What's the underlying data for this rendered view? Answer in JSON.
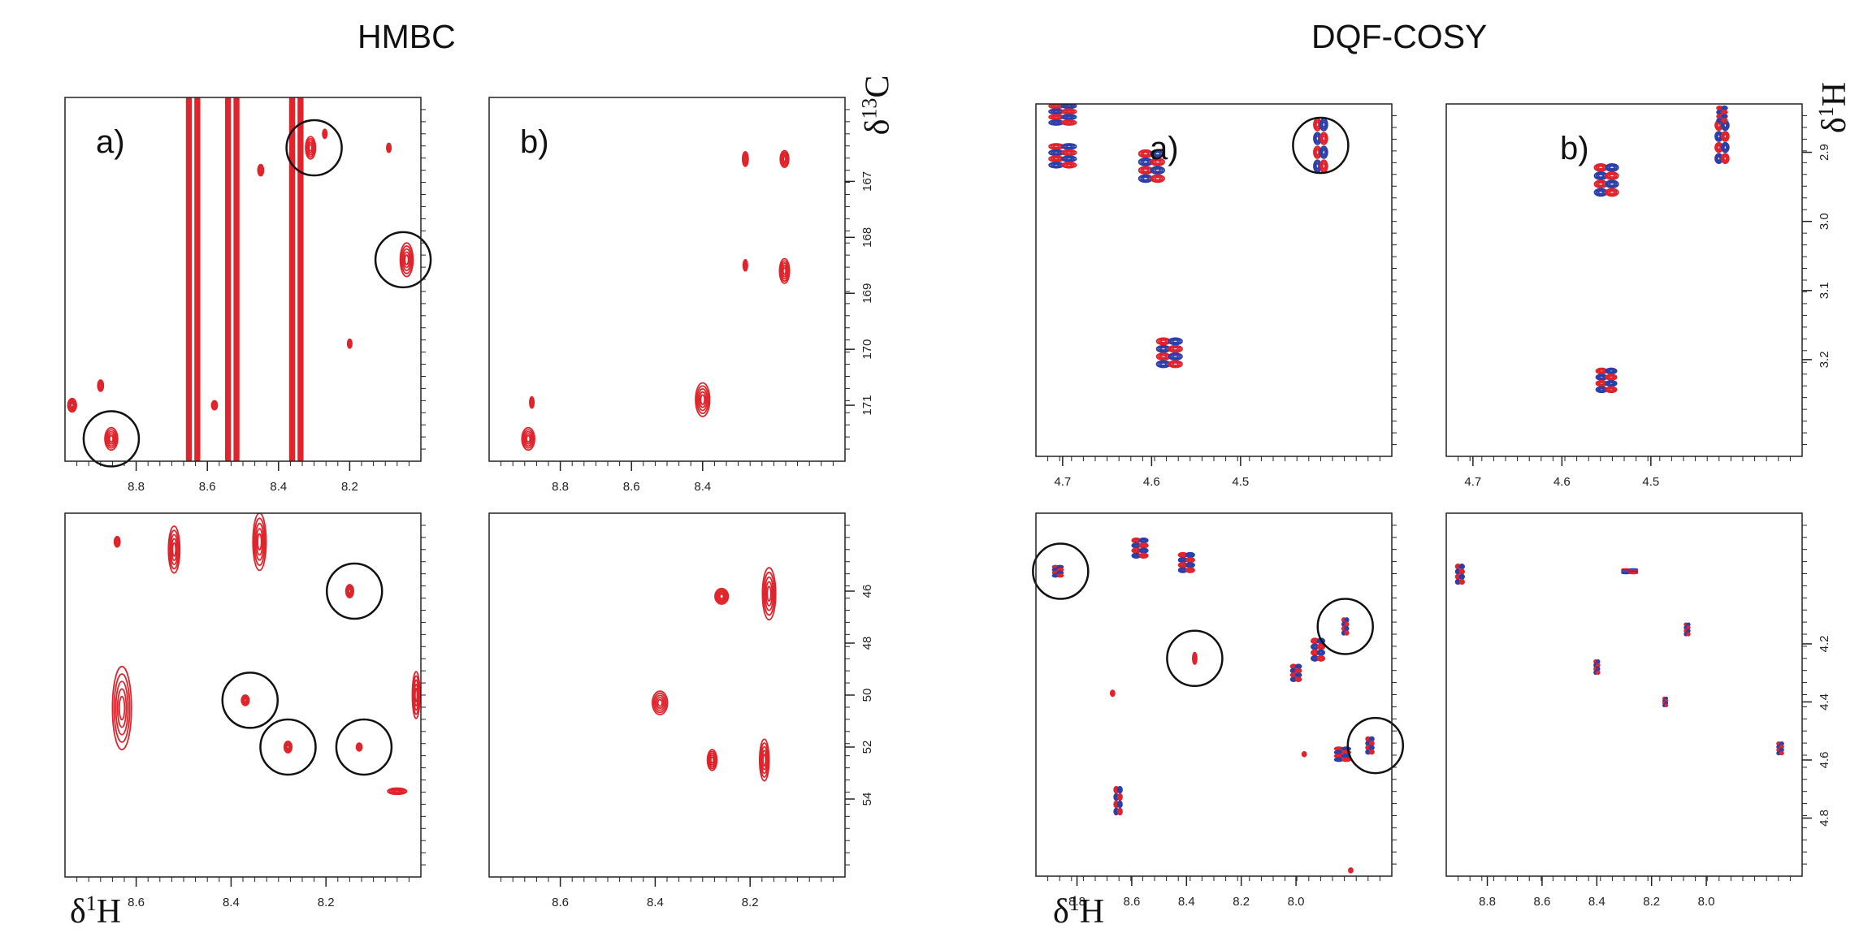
{
  "colors": {
    "positive": "#e0242c",
    "negative": "#2d3fa8",
    "circle": "#111111",
    "axis": "#222222"
  },
  "titles": {
    "hmbc": "HMBC",
    "cosy": "DQF-COSY"
  },
  "axis_titles": {
    "hmbc_bottom_x": "δ¹H",
    "cosy_bottom_x": "δ¹H",
    "hmbc_right_y": "δ¹³C",
    "cosy_right_y": "δ¹H"
  },
  "chart_data": [
    {
      "type": "heatmap",
      "group": "HMBC",
      "panel_label": "a)",
      "xlim": [
        9.0,
        8.0
      ],
      "ylim": [
        165.5,
        172.0
      ],
      "x_ticks": [
        "8.8",
        "8.6",
        "8.4",
        "8.2"
      ],
      "y_ticks": [],
      "peaks": [
        {
          "x": 8.87,
          "y": 171.6,
          "sx": 0.018,
          "sy": 0.2,
          "c": "r"
        },
        {
          "x": 8.98,
          "y": 171.0,
          "sx": 0.012,
          "sy": 0.12,
          "c": "r"
        },
        {
          "x": 8.9,
          "y": 170.65,
          "sx": 0.008,
          "sy": 0.1,
          "c": "r"
        },
        {
          "x": 8.31,
          "y": 166.4,
          "sx": 0.014,
          "sy": 0.2,
          "c": "r"
        },
        {
          "x": 8.27,
          "y": 166.15,
          "sx": 0.006,
          "sy": 0.08,
          "c": "r"
        },
        {
          "x": 8.04,
          "y": 168.4,
          "sx": 0.018,
          "sy": 0.3,
          "c": "r"
        },
        {
          "x": 8.09,
          "y": 166.4,
          "sx": 0.006,
          "sy": 0.08,
          "c": "r"
        },
        {
          "x": 8.45,
          "y": 166.8,
          "sx": 0.008,
          "sy": 0.1,
          "c": "r"
        },
        {
          "x": 8.58,
          "y": 171.0,
          "sx": 0.008,
          "sy": 0.08,
          "c": "r"
        },
        {
          "x": 8.2,
          "y": 169.9,
          "sx": 0.006,
          "sy": 0.08,
          "c": "r"
        }
      ],
      "ridges": [
        {
          "x": 8.64,
          "sx": 0.018,
          "c": "r"
        },
        {
          "x": 8.53,
          "sx": 0.018,
          "c": "r"
        },
        {
          "x": 8.35,
          "sx": 0.018,
          "c": "r"
        }
      ],
      "circles": [
        {
          "x": 8.3,
          "y": 166.4
        },
        {
          "x": 8.05,
          "y": 168.4
        },
        {
          "x": 8.87,
          "y": 171.6
        }
      ]
    },
    {
      "type": "heatmap",
      "group": "HMBC",
      "panel_label": "b)",
      "xlim": [
        9.0,
        8.0
      ],
      "ylim": [
        165.5,
        172.0
      ],
      "x_ticks": [
        "8.8",
        "8.6",
        "8.4"
      ],
      "y_ticks": [
        "167",
        "168",
        "169",
        "170",
        "171"
      ],
      "peaks": [
        {
          "x": 8.89,
          "y": 171.6,
          "sx": 0.018,
          "sy": 0.2,
          "c": "r"
        },
        {
          "x": 8.88,
          "y": 170.95,
          "sx": 0.006,
          "sy": 0.1,
          "c": "r"
        },
        {
          "x": 8.4,
          "y": 170.9,
          "sx": 0.02,
          "sy": 0.3,
          "c": "r"
        },
        {
          "x": 8.28,
          "y": 166.6,
          "sx": 0.008,
          "sy": 0.13,
          "c": "r"
        },
        {
          "x": 8.17,
          "y": 166.6,
          "sx": 0.012,
          "sy": 0.15,
          "c": "r"
        },
        {
          "x": 8.28,
          "y": 168.5,
          "sx": 0.006,
          "sy": 0.1,
          "c": "r"
        },
        {
          "x": 8.17,
          "y": 168.6,
          "sx": 0.014,
          "sy": 0.22,
          "c": "r"
        }
      ],
      "ridges": [],
      "circles": []
    },
    {
      "type": "heatmap",
      "group": "HMBC",
      "panel_label": "",
      "xlim": [
        8.75,
        8.0
      ],
      "ylim": [
        43.0,
        57.0
      ],
      "x_ticks": [
        "8.6",
        "8.4",
        "8.2"
      ],
      "y_ticks": [],
      "peaks": [
        {
          "x": 8.63,
          "y": 50.5,
          "sx": 0.02,
          "sy": 1.6,
          "c": "r"
        },
        {
          "x": 8.52,
          "y": 44.4,
          "sx": 0.012,
          "sy": 0.9,
          "c": "r"
        },
        {
          "x": 8.34,
          "y": 44.1,
          "sx": 0.014,
          "sy": 1.1,
          "c": "r"
        },
        {
          "x": 8.15,
          "y": 46.0,
          "sx": 0.008,
          "sy": 0.25,
          "c": "r"
        },
        {
          "x": 8.37,
          "y": 50.2,
          "sx": 0.008,
          "sy": 0.2,
          "c": "r"
        },
        {
          "x": 8.28,
          "y": 52.0,
          "sx": 0.008,
          "sy": 0.22,
          "c": "r"
        },
        {
          "x": 8.13,
          "y": 52.0,
          "sx": 0.006,
          "sy": 0.15,
          "c": "r"
        },
        {
          "x": 8.01,
          "y": 50.0,
          "sx": 0.008,
          "sy": 0.9,
          "c": "r"
        },
        {
          "x": 8.64,
          "y": 44.1,
          "sx": 0.006,
          "sy": 0.2,
          "c": "r"
        },
        {
          "x": 8.05,
          "y": 53.7,
          "sx": 0.02,
          "sy": 0.12,
          "c": "r"
        }
      ],
      "ridges": [],
      "circles": [
        {
          "x": 8.14,
          "y": 46.0
        },
        {
          "x": 8.36,
          "y": 50.2
        },
        {
          "x": 8.28,
          "y": 52.0
        },
        {
          "x": 8.12,
          "y": 52.0
        }
      ]
    },
    {
      "type": "heatmap",
      "group": "HMBC",
      "panel_label": "",
      "xlim": [
        8.75,
        8.0
      ],
      "ylim": [
        43.0,
        57.0
      ],
      "x_ticks": [
        "8.6",
        "8.4",
        "8.2"
      ],
      "y_ticks": [
        "46",
        "48",
        "50",
        "52",
        "54"
      ],
      "peaks": [
        {
          "x": 8.26,
          "y": 46.2,
          "sx": 0.014,
          "sy": 0.3,
          "c": "r"
        },
        {
          "x": 8.16,
          "y": 46.1,
          "sx": 0.014,
          "sy": 1.0,
          "c": "r"
        },
        {
          "x": 8.39,
          "y": 50.3,
          "sx": 0.016,
          "sy": 0.45,
          "c": "r"
        },
        {
          "x": 8.28,
          "y": 52.5,
          "sx": 0.01,
          "sy": 0.4,
          "c": "r"
        },
        {
          "x": 8.17,
          "y": 52.5,
          "sx": 0.01,
          "sy": 0.8,
          "c": "r"
        }
      ],
      "ridges": [],
      "circles": []
    },
    {
      "type": "heatmap",
      "group": "DQF-COSY",
      "panel_label": "a)",
      "xlim": [
        4.73,
        4.33
      ],
      "ylim": [
        2.83,
        3.34
      ],
      "x_ticks": [
        "4.7",
        "4.6",
        "4.5"
      ],
      "y_ticks": [],
      "peaks": [
        {
          "x": 4.7,
          "y": 2.845,
          "sx": 0.016,
          "sy": 0.016,
          "c": "rb"
        },
        {
          "x": 4.7,
          "y": 2.905,
          "sx": 0.016,
          "sy": 0.018,
          "c": "rb"
        },
        {
          "x": 4.6,
          "y": 2.92,
          "sx": 0.015,
          "sy": 0.024,
          "c": "rb"
        },
        {
          "x": 4.58,
          "y": 3.19,
          "sx": 0.015,
          "sy": 0.022,
          "c": "rb"
        },
        {
          "x": 4.41,
          "y": 2.89,
          "sx": 0.008,
          "sy": 0.04,
          "c": "rb"
        }
      ],
      "ridges": [],
      "circles": [
        {
          "x": 4.41,
          "y": 2.89
        }
      ]
    },
    {
      "type": "heatmap",
      "group": "DQF-COSY",
      "panel_label": "b)",
      "xlim": [
        4.73,
        4.33
      ],
      "ylim": [
        2.83,
        3.34
      ],
      "x_ticks": [
        "4.7",
        "4.6",
        "4.5"
      ],
      "y_ticks": [
        "2.9",
        "3.0",
        "3.1",
        "3.2"
      ],
      "peaks": [
        {
          "x": 4.55,
          "y": 2.94,
          "sx": 0.014,
          "sy": 0.024,
          "c": "rb"
        },
        {
          "x": 4.55,
          "y": 3.23,
          "sx": 0.012,
          "sy": 0.018,
          "c": "rb"
        },
        {
          "x": 4.42,
          "y": 2.885,
          "sx": 0.008,
          "sy": 0.032,
          "c": "rb"
        },
        {
          "x": 4.42,
          "y": 2.845,
          "sx": 0.006,
          "sy": 0.012,
          "c": "rb"
        }
      ],
      "ridges": [],
      "circles": []
    },
    {
      "type": "heatmap",
      "group": "DQF-COSY",
      "panel_label": "",
      "xlim": [
        8.95,
        7.65
      ],
      "ylim": [
        3.75,
        5.0
      ],
      "x_ticks": [
        "8.8",
        "8.6",
        "8.4",
        "8.2",
        "8.0"
      ],
      "y_ticks": [],
      "peaks": [
        {
          "x": 8.87,
          "y": 3.95,
          "sx": 0.02,
          "sy": 0.02,
          "c": "rb"
        },
        {
          "x": 8.57,
          "y": 3.87,
          "sx": 0.03,
          "sy": 0.035,
          "c": "rb"
        },
        {
          "x": 8.4,
          "y": 3.92,
          "sx": 0.03,
          "sy": 0.035,
          "c": "rb"
        },
        {
          "x": 8.0,
          "y": 4.3,
          "sx": 0.02,
          "sy": 0.03,
          "c": "rb"
        },
        {
          "x": 7.92,
          "y": 4.22,
          "sx": 0.025,
          "sy": 0.04,
          "c": "rb"
        },
        {
          "x": 7.82,
          "y": 4.14,
          "sx": 0.012,
          "sy": 0.03,
          "c": "rb"
        },
        {
          "x": 7.83,
          "y": 4.58,
          "sx": 0.03,
          "sy": 0.025,
          "c": "rb"
        },
        {
          "x": 7.73,
          "y": 4.55,
          "sx": 0.015,
          "sy": 0.03,
          "c": "rb"
        },
        {
          "x": 8.37,
          "y": 4.25,
          "sx": 0.006,
          "sy": 0.02,
          "c": "r"
        },
        {
          "x": 8.65,
          "y": 4.74,
          "sx": 0.015,
          "sy": 0.05,
          "c": "rb"
        },
        {
          "x": 8.67,
          "y": 4.37,
          "sx": 0.003,
          "sy": 0.01,
          "c": "r"
        },
        {
          "x": 7.97,
          "y": 4.58,
          "sx": 0.005,
          "sy": 0.008,
          "c": "r"
        },
        {
          "x": 7.8,
          "y": 4.98,
          "sx": 0.004,
          "sy": 0.008,
          "c": "r"
        }
      ],
      "ridges": [],
      "circles": [
        {
          "x": 8.86,
          "y": 3.95
        },
        {
          "x": 8.37,
          "y": 4.25
        },
        {
          "x": 7.82,
          "y": 4.14
        },
        {
          "x": 7.71,
          "y": 4.55
        }
      ]
    },
    {
      "type": "heatmap",
      "group": "DQF-COSY",
      "panel_label": "",
      "xlim": [
        8.95,
        7.65
      ],
      "ylim": [
        3.75,
        5.0
      ],
      "x_ticks": [
        "8.8",
        "8.6",
        "8.4",
        "8.2",
        "8.0"
      ],
      "y_ticks": [
        "4.2",
        "4.4",
        "4.6",
        "4.8"
      ],
      "peaks": [
        {
          "x": 8.9,
          "y": 3.96,
          "sx": 0.016,
          "sy": 0.035,
          "c": "rb"
        },
        {
          "x": 8.28,
          "y": 3.95,
          "sx": 0.03,
          "sy": 0.008,
          "c": "rb"
        },
        {
          "x": 8.07,
          "y": 4.15,
          "sx": 0.01,
          "sy": 0.022,
          "c": "rb"
        },
        {
          "x": 8.4,
          "y": 4.28,
          "sx": 0.01,
          "sy": 0.025,
          "c": "rb"
        },
        {
          "x": 8.15,
          "y": 4.4,
          "sx": 0.008,
          "sy": 0.016,
          "c": "rb"
        },
        {
          "x": 7.73,
          "y": 4.56,
          "sx": 0.012,
          "sy": 0.022,
          "c": "rb"
        }
      ],
      "ridges": [],
      "circles": []
    }
  ]
}
